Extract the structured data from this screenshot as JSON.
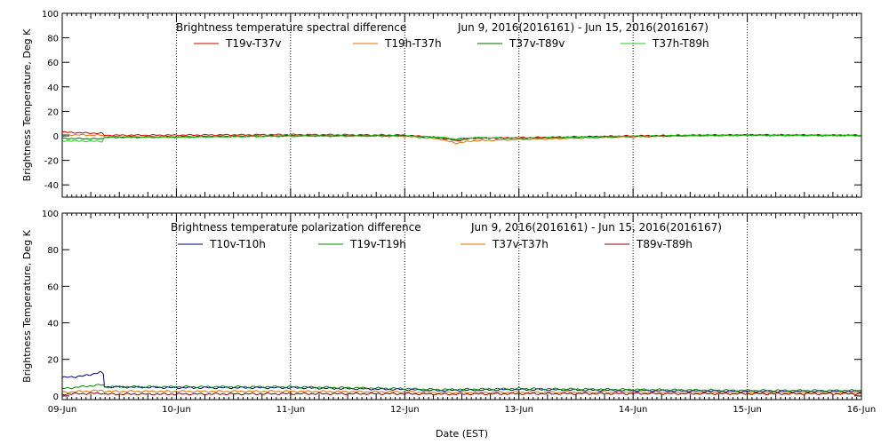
{
  "chart_data": [
    {
      "type": "line",
      "title": "Brightness temperature spectral difference",
      "date_range": "Jun  9, 2016(2016161) - Jun 15, 2016(2016167)",
      "ylabel": "Brightness Temperature, Deg K",
      "xlabel": "",
      "ylim": [
        -50,
        100
      ],
      "yticks": [
        -40,
        -20,
        0,
        20,
        40,
        60,
        80,
        100
      ],
      "xlim": [
        0,
        7
      ],
      "grid": true,
      "series": [
        {
          "name": "T19v-T37v",
          "color": "#cc0000",
          "points": [
            [
              0,
              3
            ],
            [
              0.35,
              2
            ],
            [
              0.37,
              0.5
            ],
            [
              1,
              0.6
            ],
            [
              2,
              1
            ],
            [
              3,
              0.6
            ],
            [
              3.3,
              -1.5
            ],
            [
              3.45,
              -4
            ],
            [
              3.6,
              -2
            ],
            [
              4,
              -1.5
            ],
            [
              5,
              0
            ],
            [
              5.5,
              0.5
            ],
            [
              6,
              0.8
            ],
            [
              7,
              0.5
            ]
          ]
        },
        {
          "name": "T19h-T37h",
          "color": "#e07000",
          "points": [
            [
              0,
              1
            ],
            [
              0.35,
              0.5
            ],
            [
              0.37,
              -0.8
            ],
            [
              1,
              -0.8
            ],
            [
              2,
              0.3
            ],
            [
              3,
              -0.4
            ],
            [
              3.3,
              -2.5
            ],
            [
              3.45,
              -6
            ],
            [
              3.6,
              -4
            ],
            [
              4,
              -3
            ],
            [
              5,
              -0.8
            ],
            [
              5.5,
              0
            ],
            [
              6,
              0.5
            ],
            [
              7,
              0.3
            ]
          ]
        },
        {
          "name": "T37v-T89v",
          "color": "#006600",
          "points": [
            [
              0,
              -2
            ],
            [
              0.35,
              -2.5
            ],
            [
              0.37,
              -1
            ],
            [
              1,
              -0.8
            ],
            [
              2,
              0
            ],
            [
              3,
              0.2
            ],
            [
              3.3,
              -1.5
            ],
            [
              3.45,
              -3
            ],
            [
              3.6,
              -1.5
            ],
            [
              4,
              -2
            ],
            [
              5,
              -0.4
            ],
            [
              5.5,
              0.3
            ],
            [
              6,
              0.6
            ],
            [
              7,
              0.3
            ]
          ]
        },
        {
          "name": "T37h-T89h",
          "color": "#22cc22",
          "points": [
            [
              0,
              -4
            ],
            [
              0.35,
              -4.5
            ],
            [
              0.37,
              -1.5
            ],
            [
              1,
              -1.2
            ],
            [
              2,
              -0.3
            ],
            [
              3,
              -0.2
            ],
            [
              3.3,
              -1
            ],
            [
              3.45,
              -2.5
            ],
            [
              3.6,
              -1.5
            ],
            [
              4,
              -2
            ],
            [
              5,
              -0.3
            ],
            [
              5.5,
              0.2
            ],
            [
              6,
              0.5
            ],
            [
              7,
              0.2
            ]
          ]
        }
      ]
    },
    {
      "type": "line",
      "title": "Brightness temperature polarization difference",
      "date_range": "Jun  9, 2016(2016161) - Jun 15, 2016(2016167)",
      "ylabel": "Brightness Temperature, Deg K",
      "xlabel": "Date (EST)",
      "ylim": [
        -2,
        100
      ],
      "yticks": [
        0,
        20,
        40,
        60,
        80,
        100
      ],
      "xlim": [
        0,
        7
      ],
      "xticks": [
        "09-Jun",
        "10-Jun",
        "11-Jun",
        "12-Jun",
        "13-Jun",
        "14-Jun",
        "15-Jun",
        "16-Jun"
      ],
      "grid": true,
      "series": [
        {
          "name": "T10v-T10h",
          "color": "#000080",
          "points": [
            [
              0,
              10
            ],
            [
              0.2,
              11
            ],
            [
              0.33,
              13
            ],
            [
              0.36,
              12
            ],
            [
              0.37,
              5
            ],
            [
              1,
              4.5
            ],
            [
              2,
              4.5
            ],
            [
              3,
              3.5
            ],
            [
              3.3,
              3
            ],
            [
              4,
              3.5
            ],
            [
              5,
              3
            ],
            [
              6,
              2.5
            ],
            [
              7,
              2.5
            ]
          ]
        },
        {
          "name": "T19v-T19h",
          "color": "#008800",
          "points": [
            [
              0,
              4
            ],
            [
              0.33,
              6
            ],
            [
              0.36,
              6
            ],
            [
              0.37,
              5
            ],
            [
              1,
              5
            ],
            [
              2,
              5
            ],
            [
              3,
              4
            ],
            [
              3.3,
              3.5
            ],
            [
              4,
              4
            ],
            [
              5,
              3.5
            ],
            [
              6,
              3
            ],
            [
              7,
              3
            ]
          ]
        },
        {
          "name": "T37v-T37h",
          "color": "#e07000",
          "points": [
            [
              0,
              2
            ],
            [
              0.36,
              3
            ],
            [
              0.37,
              2.5
            ],
            [
              1,
              2.5
            ],
            [
              2,
              2.5
            ],
            [
              3,
              2.2
            ],
            [
              3.3,
              1.8
            ],
            [
              4,
              2
            ],
            [
              5,
              2
            ],
            [
              6,
              1.8
            ],
            [
              7,
              1.8
            ]
          ]
        },
        {
          "name": "T89v-T89h",
          "color": "#880000",
          "points": [
            [
              0,
              1
            ],
            [
              0.36,
              1.5
            ],
            [
              0.37,
              1
            ],
            [
              1,
              1
            ],
            [
              2,
              1.2
            ],
            [
              3,
              1.2
            ],
            [
              3.3,
              1
            ],
            [
              4,
              1.2
            ],
            [
              5,
              1.3
            ],
            [
              6,
              1.2
            ],
            [
              7,
              1.2
            ]
          ]
        }
      ]
    }
  ]
}
